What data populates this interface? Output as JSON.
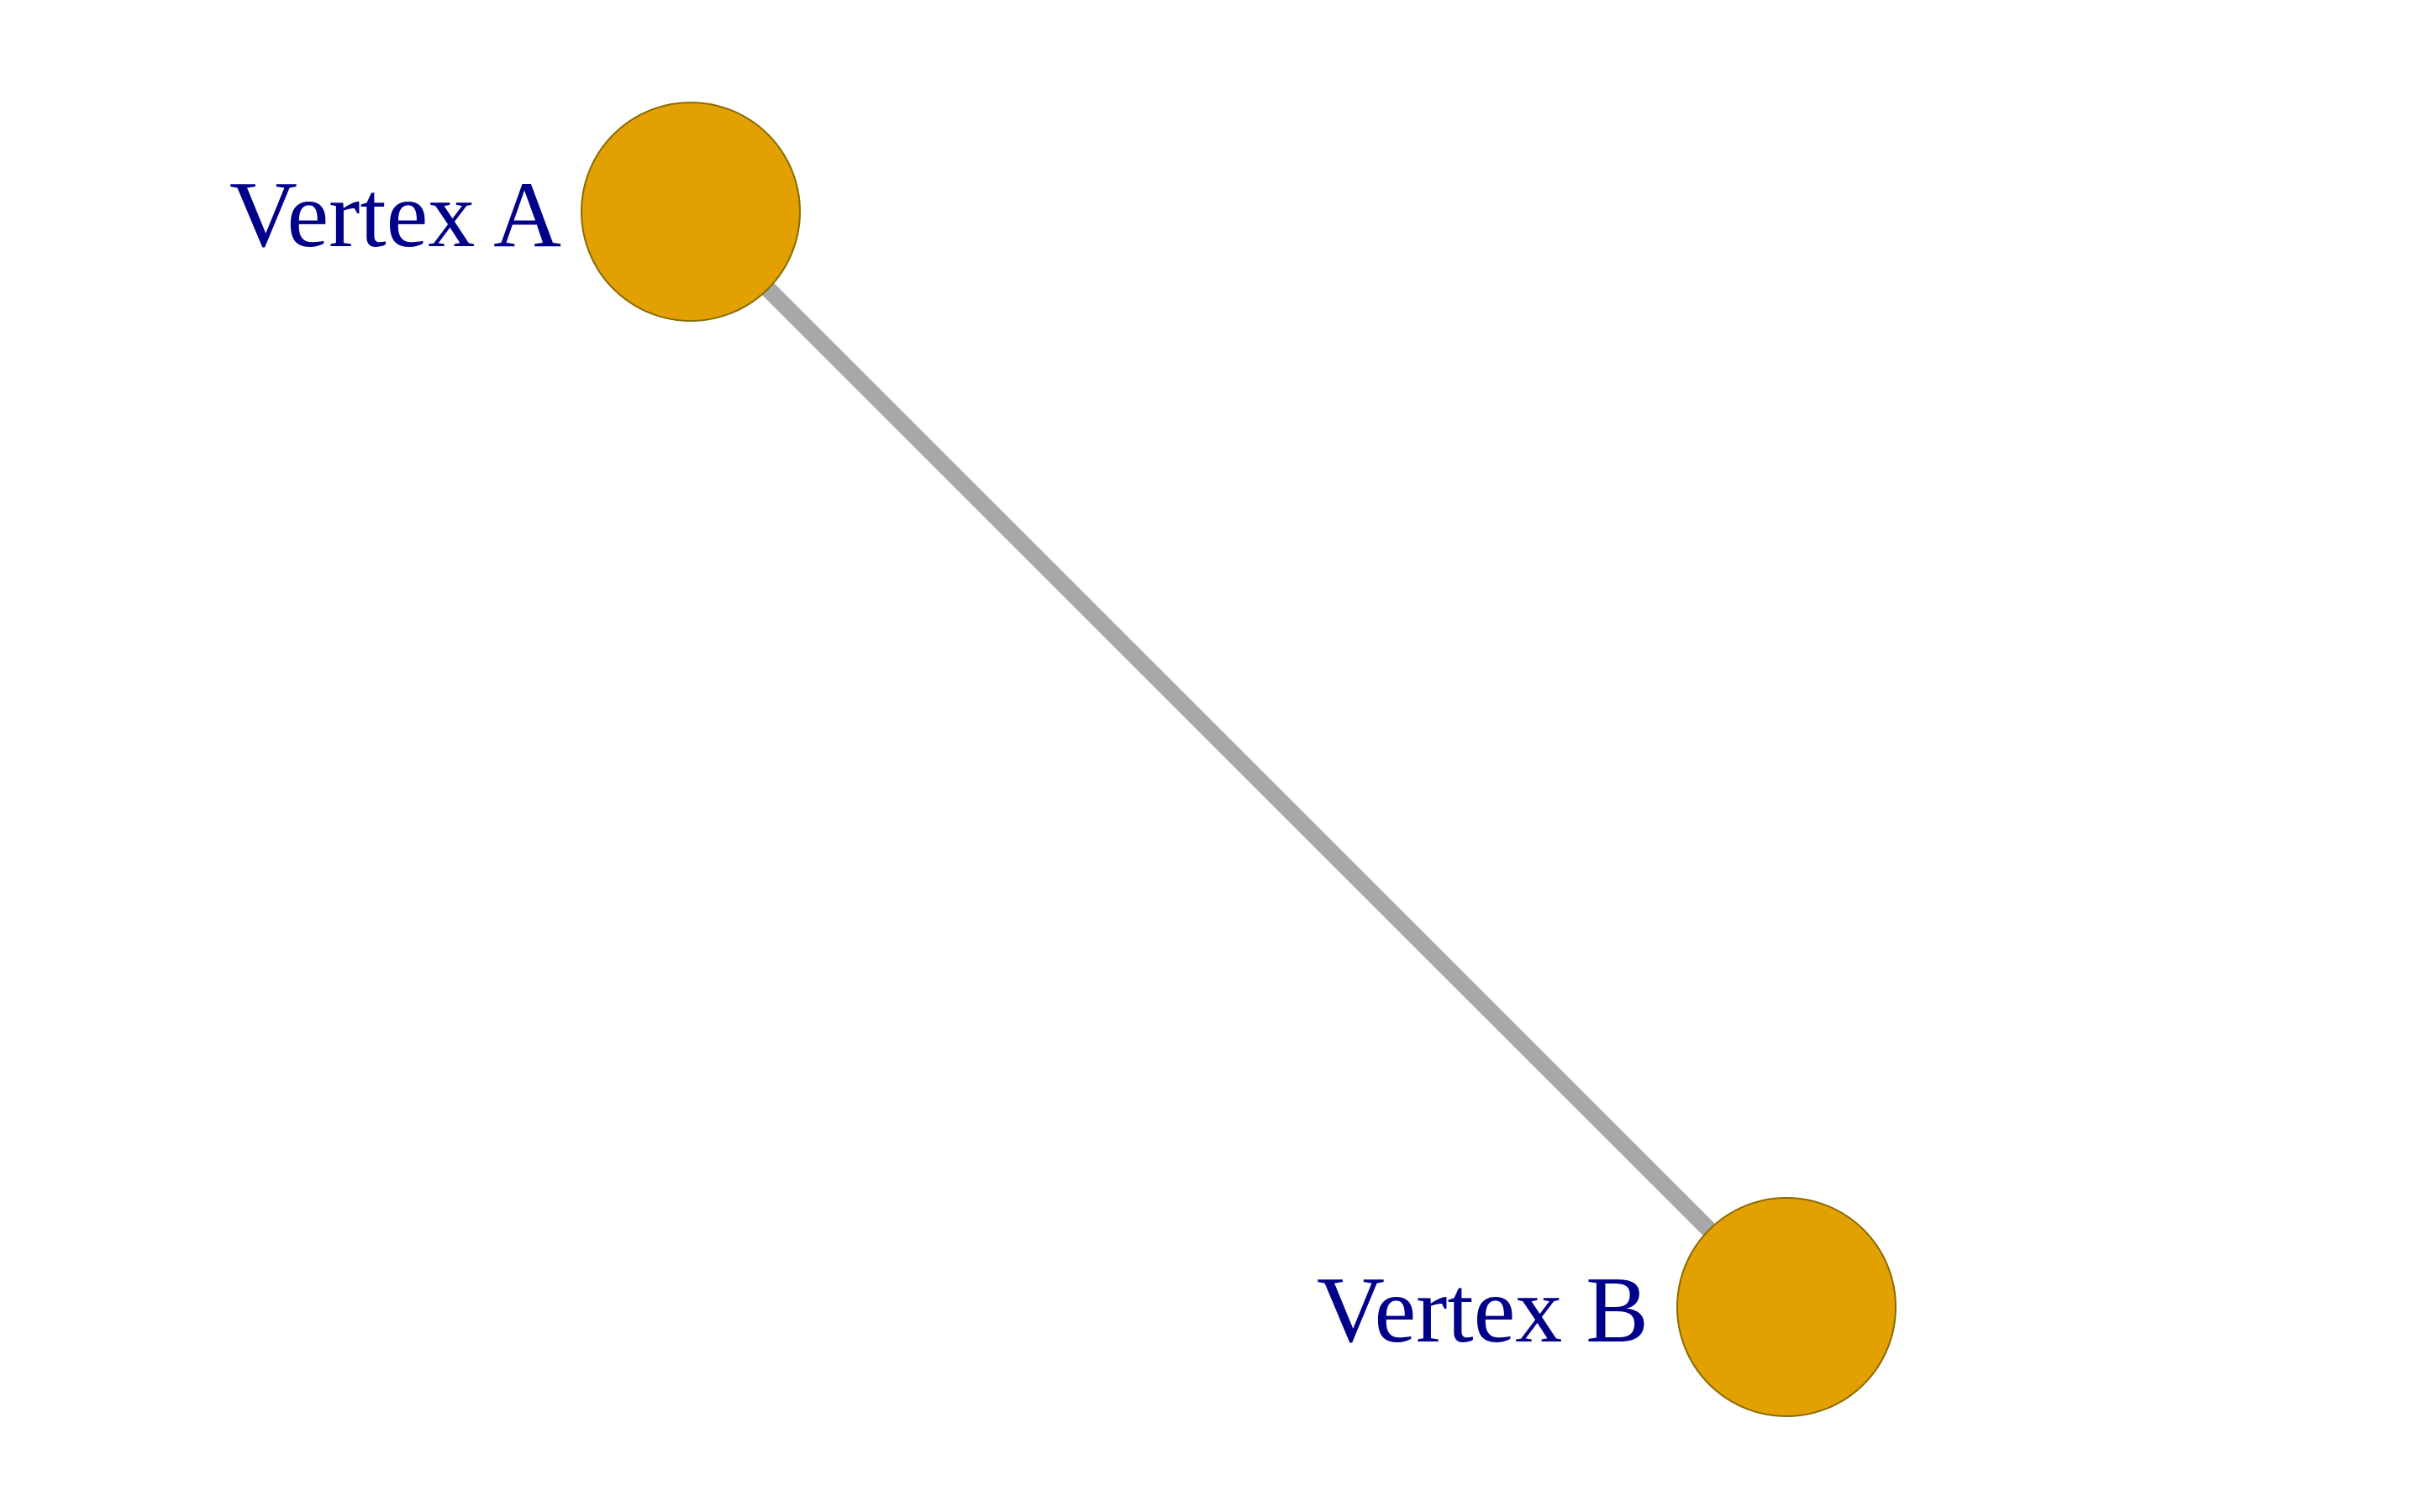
{
  "graph": {
    "vertices": [
      {
        "id": "a",
        "label": "Vertex A"
      },
      {
        "id": "b",
        "label": "Vertex B"
      }
    ],
    "edges": [
      {
        "from": "a",
        "to": "b"
      }
    ]
  },
  "colors": {
    "background": "#ffffff",
    "vertex_fill": "#E3A001",
    "vertex_stroke": "#8a6a00",
    "edge": "#a8a8a8",
    "label": "#00008B"
  }
}
